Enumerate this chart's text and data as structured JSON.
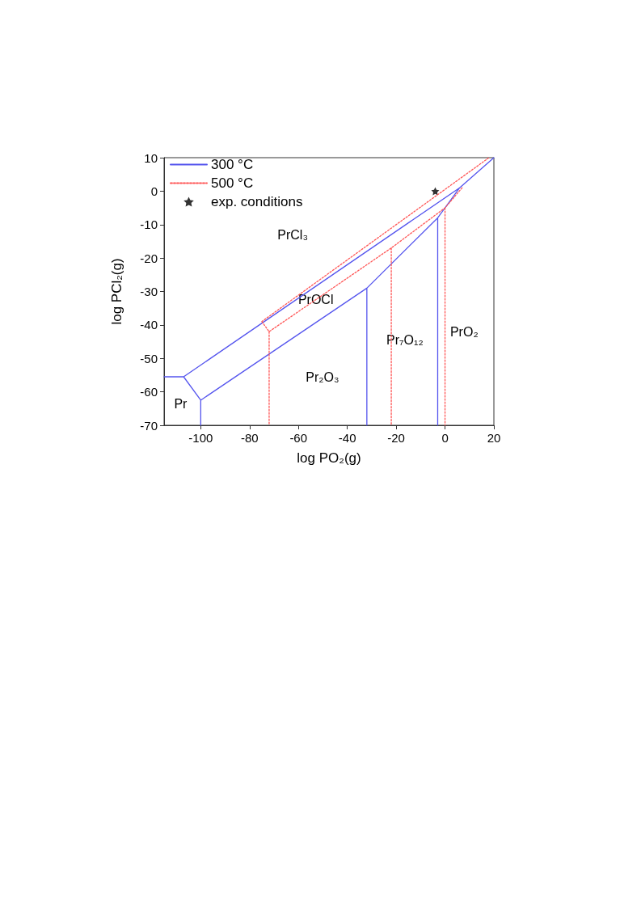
{
  "chart_data": {
    "type": "line",
    "xlabel": "log PO₂(g)",
    "ylabel": "log PCl₂(g)",
    "xlim": [
      -115,
      20
    ],
    "xticks": [
      -100,
      -80,
      -60,
      -40,
      -20,
      0,
      20
    ],
    "ylim": [
      -70,
      10
    ],
    "yticks": [
      -70,
      -60,
      -50,
      -40,
      -30,
      -20,
      -10,
      0,
      10
    ],
    "grid": false,
    "legend": "top left",
    "marker": "none",
    "series": [
      {
        "name": "300 °C",
        "color": "#5555ee",
        "line_style": "solid",
        "x": [
          -115,
          -107,
          6,
          20,
          null,
          -107,
          -100,
          -32,
          -3,
          6,
          null,
          -100,
          -100,
          null,
          -32,
          -32,
          null,
          -3,
          -3
        ],
        "values": [
          -55.5,
          -55.5,
          1,
          10,
          null,
          -55.5,
          -62.5,
          -29,
          -8,
          1,
          null,
          -62.5,
          -70,
          null,
          -29,
          -70,
          null,
          -8,
          -70
        ]
      },
      {
        "name": "500 °C",
        "color": "#ff5555",
        "line_style": "dotted",
        "x": [
          -75,
          18,
          null,
          -75,
          -72,
          -22,
          0,
          7,
          null,
          -72,
          -72,
          null,
          -22,
          -22,
          null,
          0,
          0
        ],
        "values": [
          -39,
          10,
          null,
          -39,
          -42,
          -17,
          -5,
          1,
          null,
          -42,
          -70,
          null,
          -17,
          -70,
          null,
          -5,
          -70
        ]
      },
      {
        "name": "exp. conditions",
        "type": "scatter",
        "color": "#000000",
        "marker": "star",
        "x": [
          -4
        ],
        "values": [
          0
        ]
      }
    ],
    "annotations": [
      "PrCl₃",
      "PrOCl",
      "Pr₂O₃",
      "Pr₇O₁₂",
      "PrO₂",
      "Pr"
    ]
  }
}
